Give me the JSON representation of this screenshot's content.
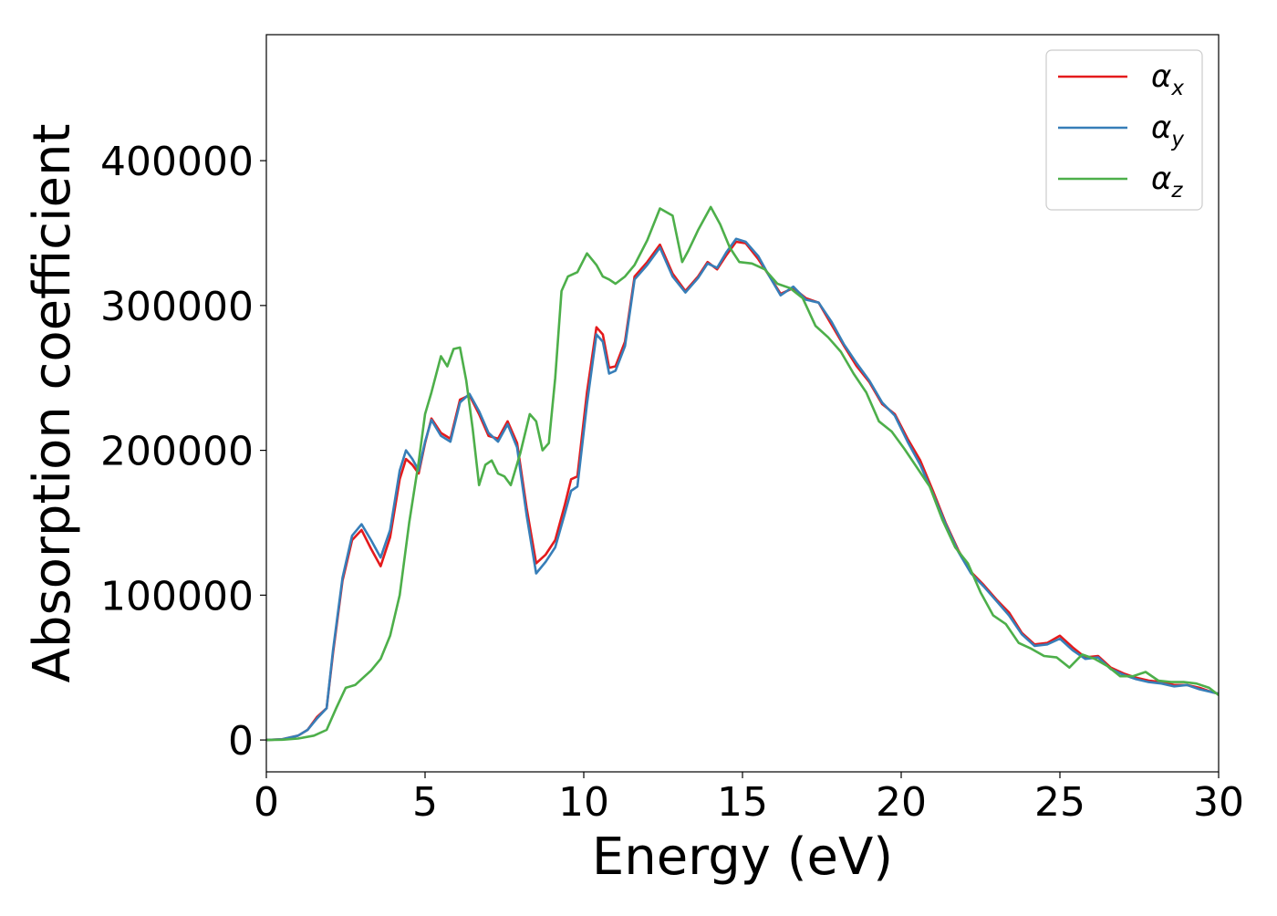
{
  "chart_data": {
    "type": "line",
    "xlabel": "Energy (eV)",
    "ylabel": "Absorption coefficient",
    "xlim": [
      0,
      30
    ],
    "ylim": [
      -22000,
      487000
    ],
    "xticks": [
      0,
      5,
      10,
      15,
      20,
      25,
      30
    ],
    "xtick_labels": [
      "0",
      "5",
      "10",
      "15",
      "20",
      "25",
      "30"
    ],
    "yticks": [
      0,
      100000,
      200000,
      300000,
      400000
    ],
    "ytick_labels": [
      "0",
      "100000",
      "200000",
      "300000",
      "400000"
    ],
    "grid": false,
    "legend_position": "top-right",
    "series": [
      {
        "name": "α",
        "subscript": "x",
        "color": "#e41a1c",
        "x": [
          0,
          0.5,
          1.0,
          1.3,
          1.6,
          1.9,
          2.1,
          2.4,
          2.7,
          3.0,
          3.3,
          3.6,
          3.9,
          4.2,
          4.4,
          4.6,
          4.8,
          5.0,
          5.2,
          5.5,
          5.8,
          6.1,
          6.4,
          6.7,
          7.0,
          7.3,
          7.6,
          7.9,
          8.2,
          8.5,
          8.8,
          9.1,
          9.4,
          9.6,
          9.8,
          10.1,
          10.4,
          10.6,
          10.8,
          11.0,
          11.3,
          11.6,
          12.0,
          12.4,
          12.8,
          13.2,
          13.6,
          13.9,
          14.2,
          14.5,
          14.8,
          15.1,
          15.5,
          15.8,
          16.2,
          16.6,
          17.0,
          17.4,
          17.8,
          18.2,
          18.6,
          19.0,
          19.4,
          19.8,
          20.2,
          20.6,
          21.0,
          21.4,
          21.8,
          22.2,
          22.6,
          23.0,
          23.4,
          23.8,
          24.2,
          24.6,
          25.0,
          25.4,
          25.8,
          26.2,
          26.6,
          27.0,
          27.4,
          27.8,
          28.2,
          28.6,
          29.0,
          29.4,
          29.8,
          30.0
        ],
        "y": [
          0,
          500,
          3000,
          7000,
          16000,
          22000,
          60000,
          110000,
          138000,
          145000,
          132000,
          120000,
          140000,
          180000,
          194000,
          190000,
          184000,
          205000,
          222000,
          212000,
          208000,
          235000,
          238000,
          225000,
          210000,
          208000,
          220000,
          205000,
          160000,
          122000,
          128000,
          138000,
          162000,
          180000,
          182000,
          240000,
          285000,
          280000,
          257000,
          258000,
          275000,
          320000,
          330000,
          342000,
          322000,
          310000,
          320000,
          330000,
          325000,
          335000,
          344000,
          343000,
          332000,
          322000,
          308000,
          312000,
          305000,
          302000,
          287000,
          272000,
          258000,
          247000,
          232000,
          225000,
          208000,
          193000,
          172000,
          150000,
          131000,
          116000,
          107000,
          97000,
          88000,
          74000,
          66000,
          67000,
          72000,
          64000,
          57000,
          58000,
          50000,
          46000,
          43000,
          41000,
          40000,
          38000,
          38000,
          36000,
          33000,
          32000
        ]
      },
      {
        "name": "α",
        "subscript": "y",
        "color": "#377eb8",
        "x": [
          0,
          0.5,
          1.0,
          1.3,
          1.6,
          1.9,
          2.1,
          2.4,
          2.7,
          3.0,
          3.3,
          3.6,
          3.9,
          4.2,
          4.4,
          4.6,
          4.8,
          5.0,
          5.2,
          5.5,
          5.8,
          6.1,
          6.4,
          6.7,
          7.0,
          7.3,
          7.6,
          7.9,
          8.2,
          8.5,
          8.8,
          9.1,
          9.4,
          9.6,
          9.8,
          10.1,
          10.4,
          10.6,
          10.8,
          11.0,
          11.3,
          11.6,
          12.0,
          12.4,
          12.8,
          13.2,
          13.6,
          13.9,
          14.2,
          14.5,
          14.8,
          15.1,
          15.5,
          15.8,
          16.2,
          16.6,
          17.0,
          17.4,
          17.8,
          18.2,
          18.6,
          19.0,
          19.4,
          19.8,
          20.2,
          20.6,
          21.0,
          21.4,
          21.8,
          22.2,
          22.6,
          23.0,
          23.4,
          23.8,
          24.2,
          24.6,
          25.0,
          25.4,
          25.8,
          26.2,
          26.6,
          27.0,
          27.4,
          27.8,
          28.2,
          28.6,
          29.0,
          29.4,
          29.8,
          30.0
        ],
        "y": [
          0,
          500,
          3000,
          7000,
          15000,
          22000,
          62000,
          112000,
          141000,
          149000,
          138000,
          126000,
          145000,
          186000,
          200000,
          194000,
          186000,
          206000,
          221000,
          210000,
          206000,
          233000,
          239000,
          227000,
          212000,
          206000,
          218000,
          202000,
          155000,
          115000,
          123000,
          133000,
          156000,
          172000,
          175000,
          232000,
          280000,
          275000,
          253000,
          255000,
          272000,
          318000,
          328000,
          340000,
          320000,
          309000,
          319000,
          329000,
          326000,
          337000,
          346000,
          344000,
          334000,
          322000,
          307000,
          313000,
          304000,
          302000,
          289000,
          273000,
          260000,
          248000,
          233000,
          224000,
          206000,
          190000,
          170000,
          149000,
          130000,
          115000,
          106000,
          96000,
          86000,
          73000,
          65000,
          66000,
          70000,
          62000,
          56000,
          57000,
          49000,
          45000,
          42000,
          40000,
          39000,
          37000,
          38000,
          35000,
          33000,
          32000
        ]
      },
      {
        "name": "α",
        "subscript": "z",
        "color": "#4daf4a",
        "x": [
          0,
          0.5,
          1.0,
          1.5,
          1.9,
          2.2,
          2.5,
          2.8,
          3.1,
          3.3,
          3.6,
          3.9,
          4.2,
          4.5,
          4.8,
          5.0,
          5.2,
          5.5,
          5.7,
          5.9,
          6.1,
          6.3,
          6.5,
          6.7,
          6.9,
          7.1,
          7.3,
          7.5,
          7.7,
          8.0,
          8.3,
          8.5,
          8.7,
          8.9,
          9.1,
          9.3,
          9.5,
          9.8,
          10.1,
          10.4,
          10.6,
          10.8,
          11.0,
          11.3,
          11.6,
          12.0,
          12.4,
          12.8,
          13.1,
          13.3,
          13.6,
          14.0,
          14.3,
          14.6,
          14.9,
          15.3,
          15.7,
          16.1,
          16.5,
          16.9,
          17.3,
          17.7,
          18.1,
          18.5,
          18.9,
          19.3,
          19.7,
          20.1,
          20.5,
          20.9,
          21.3,
          21.7,
          22.1,
          22.5,
          22.9,
          23.3,
          23.7,
          24.1,
          24.5,
          24.9,
          25.3,
          25.7,
          26.1,
          26.5,
          26.9,
          27.3,
          27.7,
          28.1,
          28.5,
          28.9,
          29.3,
          29.7,
          30.0
        ],
        "y": [
          0,
          200,
          1000,
          3000,
          7000,
          22000,
          36000,
          38000,
          44000,
          48000,
          56000,
          72000,
          100000,
          150000,
          192000,
          225000,
          240000,
          265000,
          258000,
          270000,
          271000,
          248000,
          215000,
          176000,
          190000,
          193000,
          184000,
          182000,
          176000,
          198000,
          225000,
          220000,
          200000,
          205000,
          250000,
          310000,
          320000,
          323000,
          336000,
          328000,
          320000,
          318000,
          315000,
          320000,
          328000,
          345000,
          367000,
          362000,
          330000,
          338000,
          352000,
          368000,
          356000,
          340000,
          330000,
          329000,
          325000,
          315000,
          312000,
          305000,
          286000,
          278000,
          268000,
          253000,
          240000,
          220000,
          213000,
          201000,
          188000,
          175000,
          152000,
          133000,
          122000,
          102000,
          86000,
          80000,
          67000,
          63000,
          58000,
          57000,
          50000,
          59000,
          56000,
          51000,
          44000,
          44000,
          47000,
          41000,
          40000,
          40000,
          39000,
          36000,
          31000
        ]
      }
    ]
  }
}
